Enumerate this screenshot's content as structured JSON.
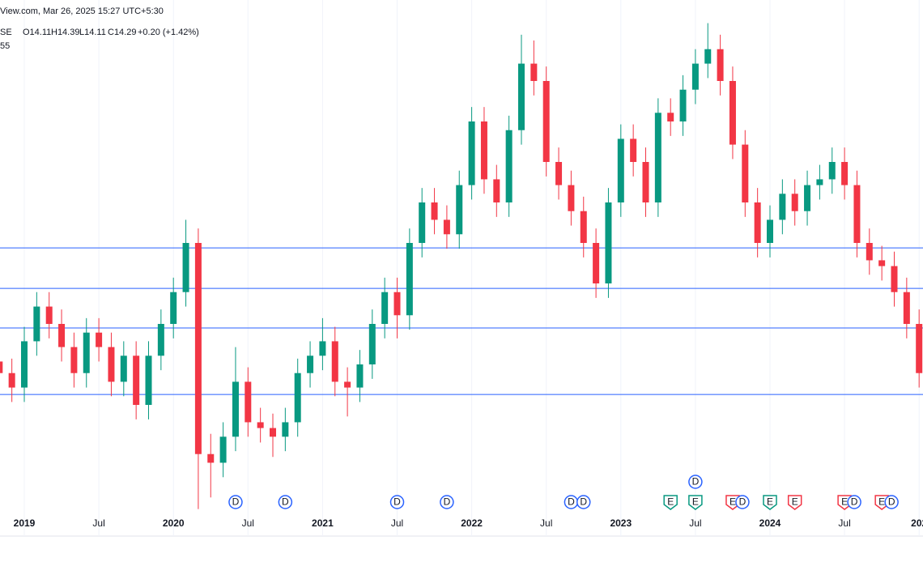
{
  "chart_data": {
    "type": "candlestick",
    "header": {
      "source": "View.com, Mar 26, 2025 15:27 UTC+5:30",
      "symbol": "SE",
      "open": "O14.11",
      "high": "H14.39",
      "low": "L14.11",
      "close": "C14.29",
      "change": "+0.20 (+1.42%)",
      "indicator": "55"
    },
    "categories": [
      "2018-11",
      "2018-12",
      "2019-01",
      "2019-02",
      "2019-03",
      "2019-04",
      "2019-05",
      "2019-06",
      "2019-07",
      "2019-08",
      "2019-09",
      "2019-10",
      "2019-11",
      "2019-12",
      "2020-01",
      "2020-02",
      "2020-03",
      "2020-04",
      "2020-05",
      "2020-06",
      "2020-07",
      "2020-08",
      "2020-09",
      "2020-10",
      "2020-11",
      "2020-12",
      "2021-01",
      "2021-02",
      "2021-03",
      "2021-04",
      "2021-05",
      "2021-06",
      "2021-07",
      "2021-08",
      "2021-09",
      "2021-10",
      "2021-11",
      "2021-12",
      "2022-01",
      "2022-02",
      "2022-03",
      "2022-04",
      "2022-05",
      "2022-06",
      "2022-07",
      "2022-08",
      "2022-09",
      "2022-10",
      "2022-11",
      "2022-12",
      "2023-01",
      "2023-02",
      "2023-03",
      "2023-04",
      "2023-05",
      "2023-06",
      "2023-07",
      "2023-08",
      "2023-09",
      "2023-10",
      "2023-11",
      "2023-12",
      "2024-01",
      "2024-02",
      "2024-03",
      "2024-04",
      "2024-05",
      "2024-06",
      "2024-07",
      "2024-08",
      "2024-09",
      "2024-10",
      "2024-11",
      "2024-12",
      "2025-01"
    ],
    "open": [
      14.5,
      14.1,
      13.6,
      15.2,
      16.4,
      15.8,
      15.0,
      14.1,
      15.5,
      15.0,
      13.8,
      14.7,
      13.0,
      14.7,
      15.8,
      16.9,
      18.6,
      11.3,
      11.0,
      11.9,
      13.8,
      12.4,
      12.2,
      11.9,
      12.4,
      14.1,
      14.7,
      15.2,
      13.8,
      13.6,
      14.4,
      15.8,
      16.9,
      16.1,
      18.6,
      20.0,
      19.4,
      18.9,
      20.6,
      22.8,
      20.8,
      20.0,
      22.5,
      24.8,
      24.2,
      21.4,
      20.6,
      19.7,
      18.6,
      17.2,
      20.0,
      22.2,
      21.4,
      20.0,
      23.1,
      22.8,
      23.9,
      24.8,
      25.3,
      24.2,
      22.0,
      20.0,
      18.6,
      19.4,
      20.3,
      19.7,
      20.6,
      20.8,
      21.4,
      20.6,
      18.6,
      18.0,
      17.8,
      16.9,
      15.8
    ],
    "high": [
      15.0,
      14.6,
      15.7,
      16.9,
      16.9,
      16.3,
      15.5,
      16.0,
      16.0,
      15.5,
      15.2,
      15.2,
      15.2,
      16.3,
      17.4,
      19.4,
      19.1,
      12.0,
      12.4,
      15.0,
      14.3,
      12.9,
      12.7,
      12.9,
      14.6,
      15.2,
      16.0,
      15.7,
      14.3,
      14.9,
      16.3,
      17.4,
      17.4,
      19.1,
      20.5,
      20.5,
      19.9,
      21.1,
      23.3,
      23.3,
      21.3,
      23.0,
      25.8,
      25.6,
      24.7,
      21.9,
      21.1,
      20.2,
      19.1,
      20.5,
      22.7,
      22.7,
      21.9,
      23.6,
      23.6,
      24.4,
      25.3,
      26.2,
      25.8,
      24.7,
      22.5,
      20.5,
      19.9,
      20.8,
      20.8,
      21.1,
      21.3,
      21.9,
      21.9,
      21.1,
      19.1,
      18.5,
      18.3,
      17.4,
      16.3
    ],
    "low": [
      13.6,
      13.1,
      13.1,
      14.7,
      15.3,
      14.5,
      13.6,
      13.6,
      14.5,
      13.3,
      13.3,
      12.5,
      12.5,
      14.2,
      15.3,
      16.4,
      9.4,
      9.8,
      10.5,
      11.4,
      11.9,
      11.7,
      11.2,
      11.4,
      11.9,
      13.6,
      14.2,
      13.3,
      12.6,
      13.1,
      13.9,
      15.3,
      15.3,
      15.6,
      18.1,
      18.9,
      18.4,
      18.4,
      20.1,
      20.3,
      19.5,
      19.5,
      22.0,
      23.7,
      20.9,
      20.1,
      19.2,
      18.1,
      16.7,
      16.7,
      19.5,
      20.9,
      19.5,
      19.5,
      22.3,
      22.3,
      23.4,
      24.3,
      23.7,
      21.5,
      19.5,
      18.1,
      18.1,
      18.9,
      19.2,
      19.2,
      20.1,
      20.3,
      20.1,
      18.1,
      17.5,
      17.3,
      16.4,
      15.3,
      13.6
    ],
    "close": [
      14.1,
      13.6,
      15.2,
      16.4,
      15.8,
      15.0,
      14.1,
      15.5,
      15.0,
      13.8,
      14.7,
      13.0,
      14.7,
      15.8,
      16.9,
      18.6,
      11.3,
      11.0,
      11.9,
      13.8,
      12.4,
      12.2,
      11.9,
      12.4,
      14.1,
      14.7,
      15.2,
      13.8,
      13.6,
      14.4,
      15.8,
      16.9,
      16.1,
      18.6,
      20.0,
      19.4,
      18.9,
      20.6,
      22.8,
      20.8,
      20.0,
      22.5,
      24.8,
      24.2,
      21.4,
      20.6,
      19.7,
      18.6,
      17.2,
      20.0,
      22.2,
      21.4,
      20.0,
      23.1,
      22.8,
      23.9,
      24.8,
      25.3,
      24.2,
      22.0,
      20.0,
      18.6,
      19.4,
      20.3,
      19.7,
      20.6,
      20.8,
      21.4,
      20.6,
      18.6,
      18.0,
      17.8,
      16.9,
      15.8,
      14.1
    ],
    "up_color": "#089981",
    "down_color": "#f23645",
    "ylim": [
      8.8,
      27
    ],
    "hlines": [
      18.43,
      17.03,
      15.66,
      13.36
    ],
    "hline_color": "#2962ff",
    "xticks": [
      {
        "value": "2019-01",
        "label": "2019"
      },
      {
        "value": "2019-07",
        "label": "Jul"
      },
      {
        "value": "2020-01",
        "label": "2020"
      },
      {
        "value": "2020-07",
        "label": "Jul"
      },
      {
        "value": "2021-01",
        "label": "2021"
      },
      {
        "value": "2021-07",
        "label": "Jul"
      },
      {
        "value": "2022-01",
        "label": "2022"
      },
      {
        "value": "2022-07",
        "label": "Jul"
      },
      {
        "value": "2023-01",
        "label": "2023"
      },
      {
        "value": "2023-07",
        "label": "Jul"
      },
      {
        "value": "2024-01",
        "label": "2024"
      },
      {
        "value": "2024-07",
        "label": "Jul"
      },
      {
        "value": "2025-01",
        "label": "202"
      }
    ],
    "grid": true,
    "events": [
      {
        "label": "D",
        "at": "2020-06",
        "color": "#2962ff"
      },
      {
        "label": "D",
        "at": "2020-10",
        "color": "#2962ff"
      },
      {
        "label": "D",
        "at": "2021-07",
        "color": "#2962ff"
      },
      {
        "label": "D",
        "at": "2021-11",
        "color": "#2962ff"
      },
      {
        "label": "D",
        "at": "2022-09",
        "color": "#2962ff"
      },
      {
        "label": "D",
        "at": "2022-10",
        "color": "#2962ff"
      },
      {
        "label": "E",
        "at": "2023-05",
        "color": "#089981"
      },
      {
        "label": "E",
        "at": "2023-07",
        "color": "#089981"
      },
      {
        "label": "D",
        "at": "2023-07",
        "color": "#2962ff"
      },
      {
        "label": "E",
        "at": "2023-10",
        "color": "#f23645"
      },
      {
        "label": "D",
        "at": "2023-10",
        "color": "#2962ff"
      },
      {
        "label": "E",
        "at": "2024-01",
        "color": "#089981"
      },
      {
        "label": "E",
        "at": "2024-03",
        "color": "#f23645"
      },
      {
        "label": "E",
        "at": "2024-07",
        "color": "#f23645"
      },
      {
        "label": "D",
        "at": "2024-07",
        "color": "#2962ff"
      },
      {
        "label": "E",
        "at": "2024-10",
        "color": "#f23645"
      },
      {
        "label": "D",
        "at": "2024-10",
        "color": "#2962ff"
      }
    ]
  }
}
